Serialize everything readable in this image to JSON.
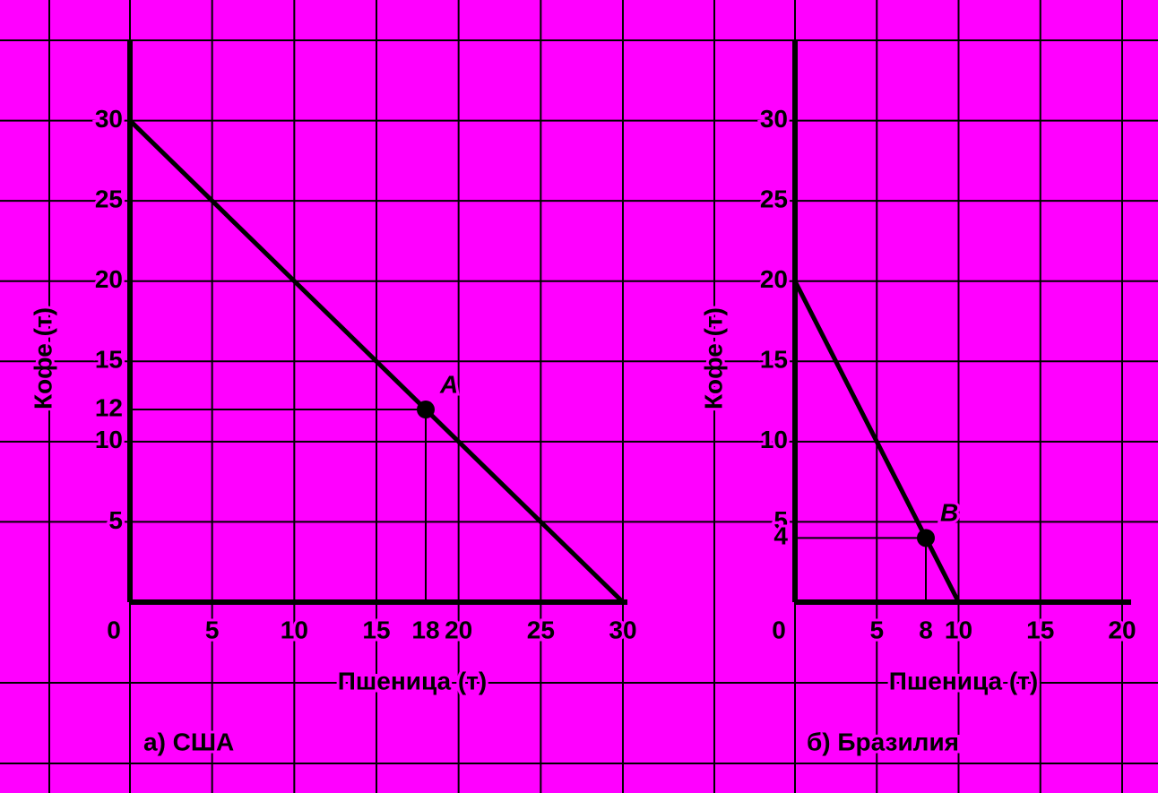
{
  "chart_data": [
    {
      "type": "line",
      "xlabel": "Пшеница (т)",
      "ylabel": "Кофе (т)",
      "caption": "а) США",
      "xlim": [
        0,
        30
      ],
      "ylim": [
        0,
        35
      ],
      "xticks": [
        0,
        5,
        10,
        15,
        20,
        25,
        30
      ],
      "yticks": [
        5,
        10,
        15,
        20,
        25,
        30
      ],
      "grid": true,
      "color": "#000000",
      "x": [
        0,
        30
      ],
      "values": [
        30,
        0
      ],
      "points": [
        {
          "label": "A",
          "x": 18,
          "y": 12
        }
      ]
    },
    {
      "type": "line",
      "xlabel": "Пшеница (т)",
      "ylabel": "Кофе (т)",
      "caption": "б) Бразилия",
      "xlim": [
        0,
        20
      ],
      "ylim": [
        0,
        35
      ],
      "xticks": [
        0,
        5,
        10,
        15,
        20
      ],
      "yticks": [
        5,
        10,
        15,
        20,
        25,
        30
      ],
      "grid": true,
      "color": "#000000",
      "x": [
        0,
        10
      ],
      "values": [
        20,
        0
      ],
      "points": [
        {
          "label": "B",
          "x": 8,
          "y": 4
        }
      ]
    }
  ]
}
